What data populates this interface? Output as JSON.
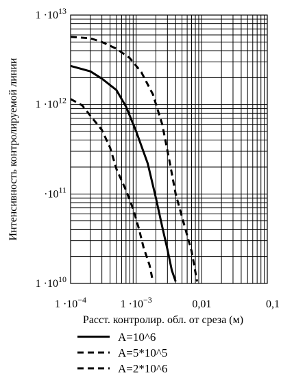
{
  "chart_data": {
    "type": "line",
    "xlabel": "Расст. контролир. обл. от среза (м)",
    "ylabel": "Интенсивность контролируемой линии",
    "xscale": "log",
    "yscale": "log",
    "xlim": [
      0.0001,
      0.1
    ],
    "ylim": [
      10000000000.0,
      10000000000000.0
    ],
    "grid": true,
    "legend_position": "bottom",
    "x_ticks": [
      {
        "value": 0.0001,
        "mantissa": "1 ·10",
        "exp": "−4"
      },
      {
        "value": 0.001,
        "mantissa": "1 ·10",
        "exp": "−3"
      },
      {
        "value": 0.01,
        "mantissa": "0,01",
        "exp": ""
      },
      {
        "value": 0.1,
        "mantissa": "0,1",
        "exp": ""
      }
    ],
    "y_ticks": [
      {
        "value": 10000000000.0,
        "mantissa": "1 ·10",
        "exp": "10"
      },
      {
        "value": 100000000000.0,
        "mantissa": "·10",
        "exp": "11"
      },
      {
        "value": 1000000000000.0,
        "mantissa": "1 ·10",
        "exp": "12"
      },
      {
        "value": 10000000000000.0,
        "mantissa": "1 ·10",
        "exp": "13"
      }
    ],
    "series": [
      {
        "name": "A=10^6",
        "style": "solid",
        "points": [
          [
            0.0001,
            2700000000000.0
          ],
          [
            0.0002,
            2350000000000.0
          ],
          [
            0.0003,
            1950000000000.0
          ],
          [
            0.0005,
            1450000000000.0
          ],
          [
            0.0007,
            950000000000.0
          ],
          [
            0.001,
            500000000000.0
          ],
          [
            0.0015,
            220000000000.0
          ],
          [
            0.002,
            90000000000.0
          ],
          [
            0.0025,
            43000000000.0
          ],
          [
            0.003,
            24000000000.0
          ],
          [
            0.0035,
            14000000000.0
          ],
          [
            0.004,
            10500000000.0
          ]
        ]
      },
      {
        "name": "A=5*10^5",
        "style": "dashed",
        "points": [
          [
            0.0001,
            1150000000000.0
          ],
          [
            0.00015,
            980000000000.0
          ],
          [
            0.0002,
            750000000000.0
          ],
          [
            0.0003,
            520000000000.0
          ],
          [
            0.0004,
            330000000000.0
          ],
          [
            0.0005,
            190000000000.0
          ],
          [
            0.0007,
            110000000000.0
          ],
          [
            0.0009,
            68000000000.0
          ],
          [
            0.0011,
            41000000000.0
          ],
          [
            0.0013,
            25000000000.0
          ],
          [
            0.0016,
            16000000000.0
          ],
          [
            0.0018,
            10500000000.0
          ]
        ]
      },
      {
        "name": "A=2*10^6",
        "style": "dashed",
        "points": [
          [
            0.0001,
            5700000000000.0
          ],
          [
            0.0002,
            5500000000000.0
          ],
          [
            0.0003,
            5000000000000.0
          ],
          [
            0.0005,
            4200000000000.0
          ],
          [
            0.0008,
            3300000000000.0
          ],
          [
            0.0012,
            2300000000000.0
          ],
          [
            0.0018,
            1300000000000.0
          ],
          [
            0.0025,
            600000000000.0
          ],
          [
            0.0032,
            240000000000.0
          ],
          [
            0.004,
            100000000000.0
          ],
          [
            0.0052,
            50000000000.0
          ],
          [
            0.007,
            23000000000.0
          ],
          [
            0.0085,
            10500000000.0
          ]
        ]
      }
    ]
  }
}
